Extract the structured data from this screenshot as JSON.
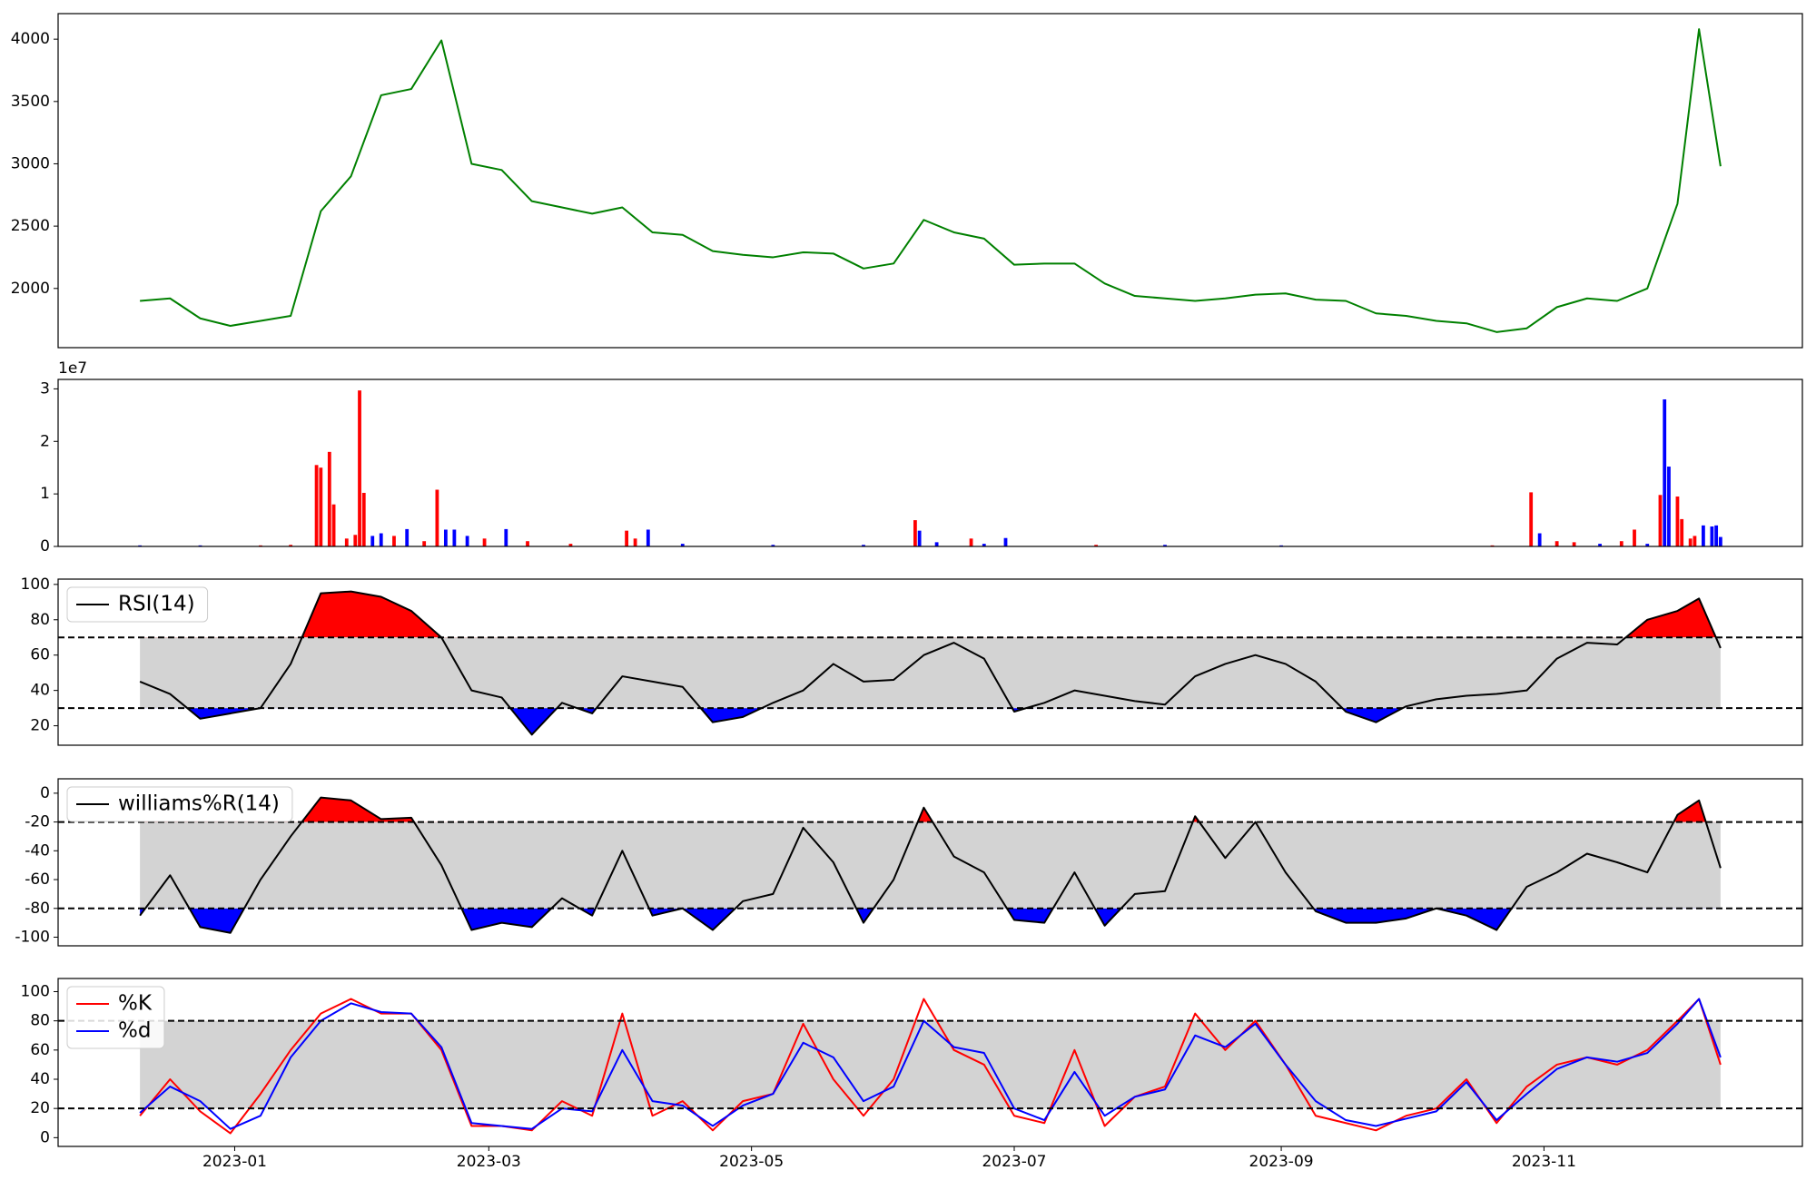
{
  "chart_data": [
    {
      "type": "line",
      "x": [
        "2022-12-10",
        "2022-12-17",
        "2022-12-24",
        "2022-12-31",
        "2023-01-07",
        "2023-01-14",
        "2023-01-21",
        "2023-01-28",
        "2023-02-04",
        "2023-02-11",
        "2023-02-18",
        "2023-02-25",
        "2023-03-04",
        "2023-03-11",
        "2023-03-18",
        "2023-03-25",
        "2023-04-01",
        "2023-04-08",
        "2023-04-15",
        "2023-04-22",
        "2023-04-29",
        "2023-05-06",
        "2023-05-13",
        "2023-05-20",
        "2023-05-27",
        "2023-06-03",
        "2023-06-10",
        "2023-06-17",
        "2023-06-24",
        "2023-07-01",
        "2023-07-08",
        "2023-07-15",
        "2023-07-22",
        "2023-07-29",
        "2023-08-05",
        "2023-08-12",
        "2023-08-19",
        "2023-08-26",
        "2023-09-02",
        "2023-09-09",
        "2023-09-16",
        "2023-09-23",
        "2023-09-30",
        "2023-10-07",
        "2023-10-14",
        "2023-10-21",
        "2023-10-28",
        "2023-11-04",
        "2023-11-11",
        "2023-11-18",
        "2023-11-25",
        "2023-12-02",
        "2023-12-07",
        "2023-12-12"
      ],
      "series": [
        {
          "color": "green",
          "values": [
            1900,
            1920,
            1760,
            1700,
            1740,
            1780,
            2620,
            2900,
            3550,
            3600,
            3990,
            3000,
            2950,
            2700,
            2650,
            2600,
            2650,
            2450,
            2430,
            2300,
            2270,
            2250,
            2290,
            2280,
            2160,
            2200,
            2550,
            2450,
            2400,
            2190,
            2200,
            2200,
            2040,
            1940,
            1920,
            1900,
            1920,
            1950,
            1960,
            1910,
            1900,
            1800,
            1780,
            1740,
            1720,
            1650,
            1680,
            1850,
            1920,
            1900,
            2000,
            2680,
            4080,
            2980
          ]
        }
      ],
      "xlim": [
        "2022-11-21",
        "2023-12-31"
      ],
      "ylim": [
        1525,
        4205
      ],
      "yticks": [
        2000,
        2500,
        3000,
        3500,
        4000
      ]
    },
    {
      "type": "bar",
      "x": [
        "2022-12-10",
        "2022-12-24",
        "2023-01-07",
        "2023-01-14",
        "2023-01-20",
        "2023-01-21",
        "2023-01-23",
        "2023-01-24",
        "2023-01-27",
        "2023-01-29",
        "2023-01-30",
        "2023-01-31",
        "2023-02-02",
        "2023-02-04",
        "2023-02-07",
        "2023-02-10",
        "2023-02-14",
        "2023-02-17",
        "2023-02-19",
        "2023-02-21",
        "2023-02-24",
        "2023-02-28",
        "2023-03-05",
        "2023-03-10",
        "2023-03-20",
        "2023-04-02",
        "2023-04-04",
        "2023-04-07",
        "2023-04-15",
        "2023-05-06",
        "2023-05-27",
        "2023-06-08",
        "2023-06-09",
        "2023-06-13",
        "2023-06-21",
        "2023-06-24",
        "2023-06-29",
        "2023-07-20",
        "2023-08-05",
        "2023-09-01",
        "2023-10-20",
        "2023-10-29",
        "2023-10-31",
        "2023-11-04",
        "2023-11-08",
        "2023-11-14",
        "2023-11-19",
        "2023-11-22",
        "2023-11-25",
        "2023-11-28",
        "2023-11-29",
        "2023-11-30",
        "2023-12-02",
        "2023-12-03",
        "2023-12-05",
        "2023-12-06",
        "2023-12-08",
        "2023-12-10",
        "2023-12-11",
        "2023-12-12"
      ],
      "values": [
        0.02,
        0.02,
        0.02,
        0.03,
        1.55,
        1.5,
        1.8,
        0.8,
        0.15,
        0.22,
        2.97,
        1.02,
        0.2,
        0.25,
        0.2,
        0.33,
        0.1,
        1.08,
        0.32,
        0.32,
        0.2,
        0.15,
        0.33,
        0.1,
        0.05,
        0.3,
        0.15,
        0.32,
        0.05,
        0.03,
        0.03,
        0.5,
        0.3,
        0.08,
        0.15,
        0.05,
        0.16,
        0.03,
        0.03,
        0.02,
        0.02,
        1.03,
        0.25,
        0.1,
        0.08,
        0.05,
        0.1,
        0.32,
        0.05,
        0.98,
        2.8,
        1.52,
        0.95,
        0.52,
        0.15,
        0.2,
        0.4,
        0.38,
        0.4,
        0.18
      ],
      "colors": [
        "blue",
        "blue",
        "red",
        "red",
        "red",
        "red",
        "red",
        "red",
        "red",
        "red",
        "red",
        "red",
        "blue",
        "blue",
        "red",
        "blue",
        "red",
        "red",
        "blue",
        "blue",
        "blue",
        "red",
        "blue",
        "red",
        "red",
        "red",
        "red",
        "blue",
        "blue",
        "blue",
        "blue",
        "red",
        "blue",
        "blue",
        "red",
        "blue",
        "blue",
        "red",
        "blue",
        "blue",
        "red",
        "red",
        "blue",
        "red",
        "red",
        "blue",
        "red",
        "red",
        "blue",
        "red",
        "blue",
        "blue",
        "red",
        "red",
        "red",
        "red",
        "blue",
        "blue",
        "blue",
        "blue"
      ],
      "offset_label": "1e7",
      "xlim": [
        "2022-11-21",
        "2023-12-31"
      ],
      "ylim": [
        0,
        3.18
      ],
      "yticks": [
        0,
        1,
        2,
        3
      ]
    },
    {
      "type": "line",
      "x": [
        "2022-12-10",
        "2022-12-17",
        "2022-12-24",
        "2022-12-31",
        "2023-01-07",
        "2023-01-14",
        "2023-01-21",
        "2023-01-28",
        "2023-02-04",
        "2023-02-11",
        "2023-02-18",
        "2023-02-25",
        "2023-03-04",
        "2023-03-11",
        "2023-03-18",
        "2023-03-25",
        "2023-04-01",
        "2023-04-08",
        "2023-04-15",
        "2023-04-22",
        "2023-04-29",
        "2023-05-06",
        "2023-05-13",
        "2023-05-20",
        "2023-05-27",
        "2023-06-03",
        "2023-06-10",
        "2023-06-17",
        "2023-06-24",
        "2023-07-01",
        "2023-07-08",
        "2023-07-15",
        "2023-07-22",
        "2023-07-29",
        "2023-08-05",
        "2023-08-12",
        "2023-08-19",
        "2023-08-26",
        "2023-09-02",
        "2023-09-09",
        "2023-09-16",
        "2023-09-23",
        "2023-09-30",
        "2023-10-07",
        "2023-10-14",
        "2023-10-21",
        "2023-10-28",
        "2023-11-04",
        "2023-11-11",
        "2023-11-18",
        "2023-11-25",
        "2023-12-02",
        "2023-12-07",
        "2023-12-12"
      ],
      "series": [
        {
          "name": "RSI(14)",
          "color": "black",
          "values": [
            45,
            38,
            24,
            27,
            30,
            55,
            95,
            96,
            93,
            85,
            70,
            40,
            36,
            15,
            33,
            27,
            48,
            45,
            42,
            22,
            25,
            33,
            40,
            55,
            45,
            46,
            60,
            67,
            58,
            28,
            33,
            40,
            37,
            34,
            32,
            48,
            55,
            60,
            55,
            45,
            28,
            22,
            31,
            35,
            37,
            38,
            40,
            58,
            67,
            66,
            80,
            85,
            92,
            64
          ]
        }
      ],
      "thresholds": [
        70,
        30
      ],
      "upper_fill_color": "red",
      "lower_fill_color": "blue",
      "band_color": "lightgray",
      "legend": "upper left",
      "xlim": [
        "2022-11-21",
        "2023-12-31"
      ],
      "ylim": [
        9,
        103
      ],
      "yticks": [
        20,
        40,
        60,
        80,
        100
      ]
    },
    {
      "type": "line",
      "x": [
        "2022-12-10",
        "2022-12-17",
        "2022-12-24",
        "2022-12-31",
        "2023-01-07",
        "2023-01-14",
        "2023-01-21",
        "2023-01-28",
        "2023-02-04",
        "2023-02-11",
        "2023-02-18",
        "2023-02-25",
        "2023-03-04",
        "2023-03-11",
        "2023-03-18",
        "2023-03-25",
        "2023-04-01",
        "2023-04-08",
        "2023-04-15",
        "2023-04-22",
        "2023-04-29",
        "2023-05-06",
        "2023-05-13",
        "2023-05-20",
        "2023-05-27",
        "2023-06-03",
        "2023-06-10",
        "2023-06-17",
        "2023-06-24",
        "2023-07-01",
        "2023-07-08",
        "2023-07-15",
        "2023-07-22",
        "2023-07-29",
        "2023-08-05",
        "2023-08-12",
        "2023-08-19",
        "2023-08-26",
        "2023-09-02",
        "2023-09-09",
        "2023-09-16",
        "2023-09-23",
        "2023-09-30",
        "2023-10-07",
        "2023-10-14",
        "2023-10-21",
        "2023-10-28",
        "2023-11-04",
        "2023-11-11",
        "2023-11-18",
        "2023-11-25",
        "2023-12-02",
        "2023-12-07",
        "2023-12-12"
      ],
      "series": [
        {
          "name": "williams%R(14)",
          "color": "black",
          "values": [
            -85,
            -57,
            -93,
            -97,
            -60,
            -30,
            -3,
            -5,
            -18,
            -17,
            -50,
            -95,
            -90,
            -93,
            -73,
            -85,
            -40,
            -85,
            -80,
            -95,
            -75,
            -70,
            -24,
            -48,
            -90,
            -60,
            -10,
            -44,
            -55,
            -88,
            -90,
            -55,
            -92,
            -70,
            -68,
            -16,
            -45,
            -20,
            -55,
            -82,
            -90,
            -90,
            -87,
            -80,
            -85,
            -95,
            -65,
            -55,
            -42,
            -48,
            -55,
            -15,
            -5,
            -52
          ]
        }
      ],
      "thresholds": [
        -20,
        -80
      ],
      "upper_fill_color": "red",
      "lower_fill_color": "blue",
      "band_color": "lightgray",
      "legend": "upper left",
      "xlim": [
        "2022-11-21",
        "2023-12-31"
      ],
      "ylim": [
        -106,
        10
      ],
      "yticks": [
        -100,
        -80,
        -60,
        -40,
        -20,
        0
      ]
    },
    {
      "type": "line",
      "x": [
        "2022-12-10",
        "2022-12-17",
        "2022-12-24",
        "2022-12-31",
        "2023-01-07",
        "2023-01-14",
        "2023-01-21",
        "2023-01-28",
        "2023-02-04",
        "2023-02-11",
        "2023-02-18",
        "2023-02-25",
        "2023-03-04",
        "2023-03-11",
        "2023-03-18",
        "2023-03-25",
        "2023-04-01",
        "2023-04-08",
        "2023-04-15",
        "2023-04-22",
        "2023-04-29",
        "2023-05-06",
        "2023-05-13",
        "2023-05-20",
        "2023-05-27",
        "2023-06-03",
        "2023-06-10",
        "2023-06-17",
        "2023-06-24",
        "2023-07-01",
        "2023-07-08",
        "2023-07-15",
        "2023-07-22",
        "2023-07-29",
        "2023-08-05",
        "2023-08-12",
        "2023-08-19",
        "2023-08-26",
        "2023-09-02",
        "2023-09-09",
        "2023-09-16",
        "2023-09-23",
        "2023-09-30",
        "2023-10-07",
        "2023-10-14",
        "2023-10-21",
        "2023-10-28",
        "2023-11-04",
        "2023-11-11",
        "2023-11-18",
        "2023-11-25",
        "2023-12-02",
        "2023-12-07",
        "2023-12-12"
      ],
      "series": [
        {
          "name": "%K",
          "color": "red",
          "values": [
            15,
            40,
            18,
            3,
            30,
            60,
            85,
            95,
            85,
            85,
            60,
            8,
            8,
            5,
            25,
            15,
            85,
            15,
            25,
            5,
            25,
            30,
            78,
            40,
            15,
            40,
            95,
            60,
            50,
            15,
            10,
            60,
            8,
            28,
            35,
            85,
            60,
            80,
            50,
            15,
            10,
            5,
            15,
            20,
            40,
            10,
            35,
            50,
            55,
            50,
            60,
            80,
            95,
            50
          ]
        },
        {
          "name": "%d",
          "color": "blue",
          "values": [
            17,
            35,
            25,
            6,
            15,
            55,
            80,
            92,
            86,
            85,
            62,
            10,
            8,
            6,
            20,
            18,
            60,
            25,
            22,
            8,
            22,
            30,
            65,
            55,
            25,
            35,
            80,
            62,
            58,
            20,
            12,
            45,
            15,
            28,
            33,
            70,
            62,
            78,
            50,
            25,
            12,
            8,
            13,
            18,
            38,
            12,
            30,
            47,
            55,
            52,
            58,
            78,
            95,
            55
          ]
        }
      ],
      "thresholds": [
        80,
        20
      ],
      "band_color": "lightgray",
      "legend": "upper left",
      "xlim": [
        "2022-11-21",
        "2023-12-31"
      ],
      "ylim": [
        -6,
        109
      ],
      "yticks": [
        0,
        20,
        40,
        60,
        80,
        100
      ],
      "xticks": [
        {
          "value": "2023-01-01",
          "label": "2023-01"
        },
        {
          "value": "2023-03-01",
          "label": "2023-03"
        },
        {
          "value": "2023-05-01",
          "label": "2023-05"
        },
        {
          "value": "2023-07-01",
          "label": "2023-07"
        },
        {
          "value": "2023-09-01",
          "label": "2023-09"
        },
        {
          "value": "2023-11-01",
          "label": "2023-11"
        }
      ]
    }
  ]
}
